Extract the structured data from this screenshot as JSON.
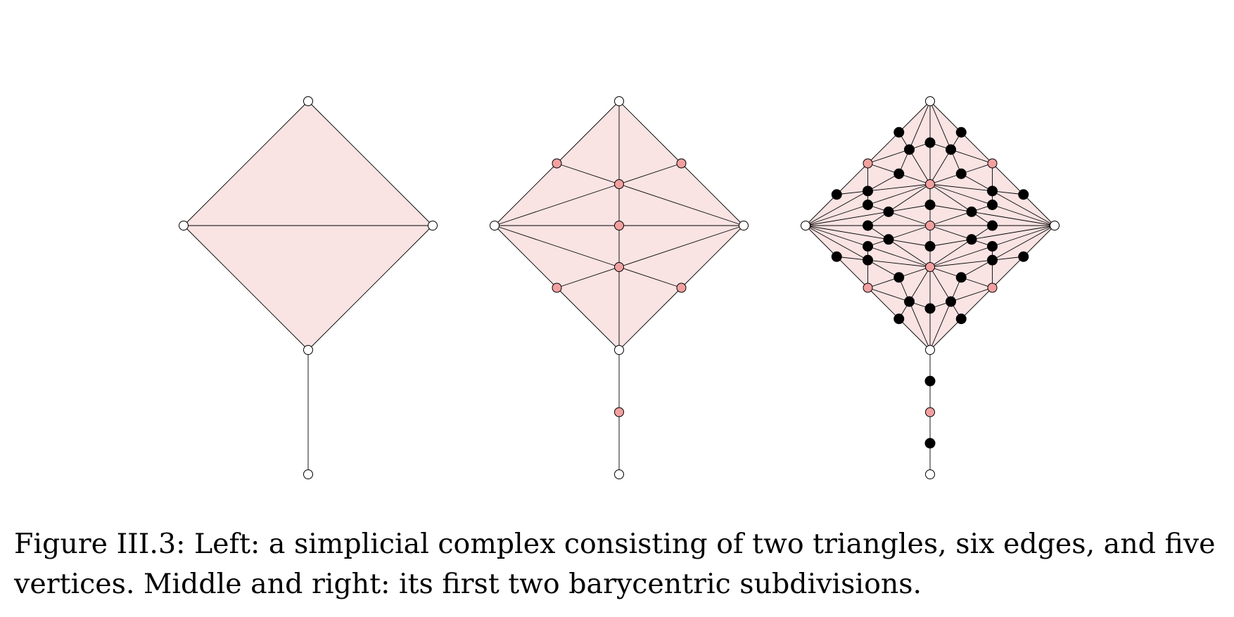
{
  "figure": {
    "panels": [
      {
        "name": "original-complex",
        "subdivision_level": 0
      },
      {
        "name": "first-barycentric-subdivision",
        "subdivision_level": 1
      },
      {
        "name": "second-barycentric-subdivision",
        "subdivision_level": 2
      }
    ],
    "colors": {
      "face_fill": "#f9e3e3",
      "edge_stroke": "#000000",
      "original_vertex": "#ffffff",
      "first_subdivision_vertex": "#f2a0a0",
      "second_subdivision_vertex": "#000000"
    }
  },
  "caption": {
    "text": "Figure III.3: Left: a simplicial complex consisting of two triangles, six edges, and five vertices. Middle and right: its first two barycentric subdivisions."
  }
}
